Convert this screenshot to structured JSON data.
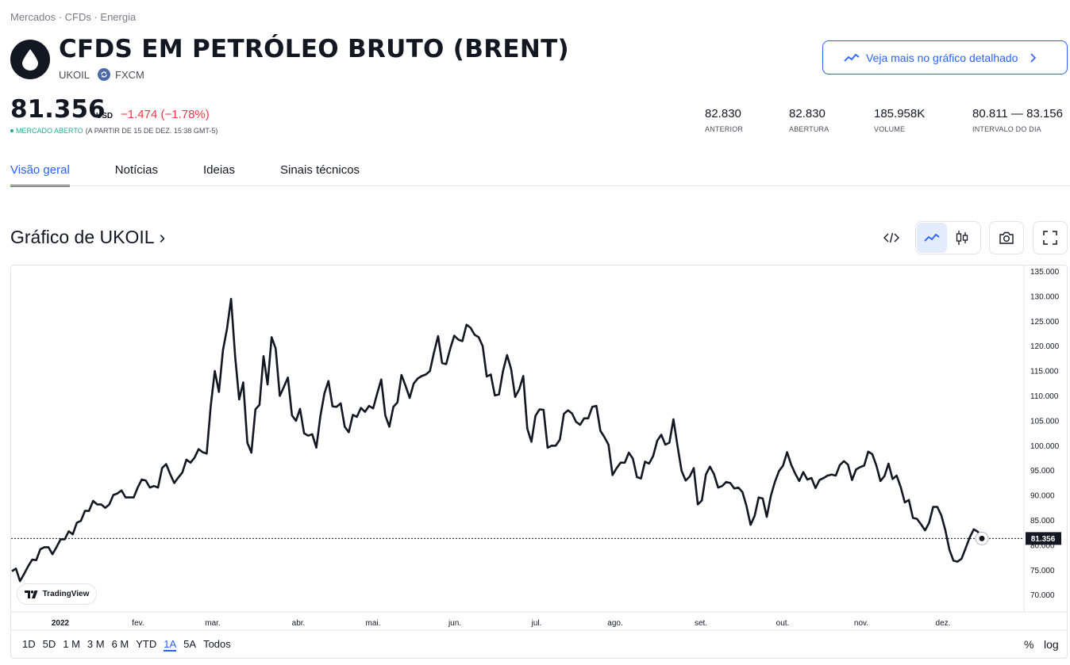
{
  "breadcrumb": "Mercados · CFDs · Energia",
  "header": {
    "title": "CFDS EM PETRÓLEO BRUTO (BRENT)",
    "symbol": "UKOIL",
    "exchange": "FXCM",
    "detail_button": "Veja mais no gráfico detalhado"
  },
  "quote": {
    "price": "81.356",
    "currency": "USD",
    "change": "−1.474",
    "change_pct": "(−1.78%)",
    "market_status": "MERCADO ABERTO",
    "as_of": "(A PARTIR DE 15 DE DEZ. 15:38 GMT-5)"
  },
  "stats": [
    {
      "value": "82.830",
      "label": "ANTERIOR"
    },
    {
      "value": "82.830",
      "label": "ABERTURA"
    },
    {
      "value": "185.958K",
      "label": "VOLUME"
    },
    {
      "value": "80.811 — 83.156",
      "label": "INTERVALO DO DIA"
    }
  ],
  "tabs": [
    "Visão geral",
    "Notícias",
    "Ideias",
    "Sinais técnicos"
  ],
  "chart_section": {
    "title": "Gráfico de UKOIL",
    "arrow": "›",
    "branding": "TradingView",
    "ranges": [
      "1D",
      "5D",
      "1 M",
      "3 M",
      "6 M",
      "YTD",
      "1A",
      "5A",
      "Todos"
    ],
    "active_range": "1A",
    "pct_label": "%",
    "log_label": "log"
  },
  "colors": {
    "accent": "#2962ff",
    "negative": "#f23645",
    "positive": "#22ab94",
    "line": "#131722"
  },
  "chart_data": {
    "type": "line",
    "ylim": [
      67.5,
      135
    ],
    "yticks": [
      "135.000",
      "130.000",
      "125.000",
      "120.000",
      "115.000",
      "110.000",
      "105.000",
      "100.000",
      "95.000",
      "90.000",
      "85.000",
      "80.000",
      "75.000",
      "70.000"
    ],
    "xticks": [
      "2022",
      "fev.",
      "mar.",
      "abr.",
      "mai.",
      "jun.",
      "jul.",
      "ago.",
      "set.",
      "out.",
      "nov.",
      "dez."
    ],
    "last_value": "81.356",
    "series": [
      {
        "values": [
          74.8,
          75.3,
          72.8,
          74.2,
          75.8,
          77.1,
          77.0,
          79.2,
          79.6,
          79.6,
          78.2,
          79.6,
          81.2,
          81.2,
          82.8,
          82.2,
          84.5,
          84.9,
          86.9,
          86.9,
          88.9,
          88.2,
          88.2,
          87.5,
          88.2,
          90.1,
          90.4,
          91.0,
          89.6,
          89.6,
          89.6,
          91.6,
          93.2,
          93.0,
          91.6,
          91.9,
          91.6,
          95.5,
          96.3,
          94.3,
          92.5,
          93.6,
          94.6,
          97.2,
          96.6,
          97.6,
          99.3,
          98.7,
          98.4,
          108.0,
          115.0,
          110.8,
          119.2,
          123.5,
          129.5,
          118.0,
          109.3,
          112.7,
          100.6,
          98.6,
          107.3,
          108.2,
          118.0,
          112.3,
          121.8,
          119.5,
          110.0,
          111.8,
          113.7,
          106.1,
          105.0,
          107.4,
          102.5,
          102.0,
          102.3,
          99.6,
          105.9,
          110.5,
          113.0,
          107.9,
          107.8,
          108.5,
          103.8,
          102.7,
          106.2,
          105.8,
          107.6,
          106.8,
          108.0,
          107.5,
          110.5,
          113.3,
          106.1,
          103.8,
          107.8,
          108.7,
          114.2,
          112.0,
          109.6,
          112.5,
          113.5,
          114.0,
          114.3,
          115.0,
          118.7,
          122.0,
          116.6,
          116.4,
          119.5,
          122.1,
          121.3,
          121.0,
          124.3,
          123.7,
          122.3,
          121.8,
          120.0,
          113.9,
          114.3,
          110.1,
          110.3,
          115.0,
          118.2,
          115.4,
          109.8,
          111.3,
          114.0,
          103.4,
          100.8,
          106.0,
          107.3,
          107.2,
          99.6,
          100.0,
          100.0,
          101.2,
          106.4,
          107.1,
          106.5,
          104.8,
          104.2,
          105.5,
          105.5,
          107.8,
          108.0,
          103.0,
          101.7,
          100.2,
          94.1,
          95.5,
          96.6,
          96.6,
          98.6,
          97.4,
          93.7,
          93.4,
          96.8,
          96.4,
          97.9,
          101.0,
          102.2,
          100.2,
          100.6,
          105.3,
          100.0,
          95.0,
          93.0,
          93.8,
          95.5,
          88.2,
          89.0,
          94.2,
          95.8,
          94.3,
          91.6,
          91.9,
          92.7,
          92.5,
          91.4,
          91.6,
          90.7,
          87.9,
          84.1,
          85.9,
          89.6,
          89.4,
          85.7,
          89.9,
          92.7,
          94.9,
          96.0,
          98.7,
          96.2,
          94.4,
          92.9,
          94.7,
          93.2,
          93.5,
          91.5,
          93.1,
          93.5,
          94.0,
          94.2,
          94.0,
          96.1,
          96.9,
          96.2,
          93.1,
          95.2,
          95.7,
          96.0,
          98.8,
          98.3,
          96.0,
          92.9,
          93.9,
          96.4,
          93.3,
          94.0,
          91.7,
          88.6,
          89.1,
          85.5,
          85.3,
          84.2,
          83.0,
          84.5,
          87.7,
          87.7,
          86.0,
          83.0,
          79.1,
          76.9,
          76.7,
          77.3,
          79.4,
          81.6,
          83.2,
          82.7,
          81.4
        ]
      }
    ]
  }
}
